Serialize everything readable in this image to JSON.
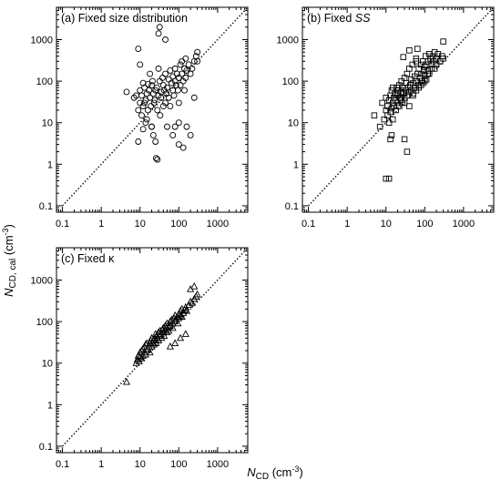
{
  "figure": {
    "y_axis_label": {
      "symbol": "N",
      "subscript": "CD, cal",
      "unit_open": " (cm",
      "unit_exp": "-3",
      "unit_close": ")"
    },
    "x_axis_label": {
      "symbol": "N",
      "subscript": "CD",
      "unit_open": " (cm",
      "unit_exp": "-3",
      "unit_close": ")"
    }
  },
  "chart_data": [
    {
      "type": "scatter",
      "panel": "a",
      "title": "(a) Fixed size distribution",
      "title_parts": [
        {
          "text": "(a) Fixed size distribution",
          "style": "normal"
        }
      ],
      "marker": "circle",
      "xscale": "log",
      "yscale": "log",
      "xlim": [
        0.07,
        6000
      ],
      "ylim": [
        0.07,
        6000
      ],
      "xticks": [
        "0.1",
        "1",
        "10",
        "100",
        "1000"
      ],
      "yticks": [
        "0.1",
        "1",
        "10",
        "100",
        "1000"
      ],
      "reference_line": "1:1",
      "x": [
        4.5,
        7,
        8,
        9,
        9,
        10,
        10,
        11,
        11,
        12,
        12,
        13,
        13,
        14,
        14,
        15,
        15,
        16,
        16,
        17,
        18,
        18,
        19,
        20,
        20,
        21,
        22,
        23,
        24,
        25,
        26,
        27,
        28,
        30,
        30,
        32,
        33,
        35,
        35,
        38,
        40,
        40,
        42,
        45,
        45,
        48,
        50,
        50,
        55,
        55,
        60,
        60,
        65,
        70,
        70,
        75,
        80,
        80,
        85,
        90,
        95,
        100,
        100,
        110,
        110,
        120,
        120,
        130,
        140,
        140,
        150,
        160,
        180,
        200,
        220,
        250,
        280,
        300,
        10,
        12,
        22,
        30,
        45,
        70,
        80,
        100,
        130,
        160,
        200,
        250,
        300,
        9,
        25,
        28,
        32,
        150,
        20,
        100
      ],
      "y": [
        55,
        40,
        45,
        3.5,
        20,
        30,
        60,
        45,
        15,
        25,
        90,
        30,
        70,
        10,
        35,
        50,
        12,
        85,
        20,
        60,
        40,
        150,
        25,
        80,
        8,
        100,
        50,
        30,
        35,
        60,
        1.4,
        70,
        20,
        45,
        200,
        100,
        15,
        55,
        40,
        120,
        25,
        80,
        60,
        30,
        150,
        50,
        70,
        8,
        110,
        40,
        180,
        25,
        90,
        60,
        130,
        45,
        200,
        100,
        80,
        150,
        60,
        30,
        120,
        250,
        80,
        300,
        150,
        100,
        200,
        60,
        120,
        180,
        250,
        150,
        200,
        300,
        400,
        500,
        250,
        7,
        5,
        1400,
        1000,
        5,
        8,
        3,
        2.5,
        8,
        5,
        40,
        300,
        600,
        3.5,
        1.3,
        2000,
        350,
        8,
        10
      ]
    },
    {
      "type": "scatter",
      "panel": "b",
      "title": "(b) Fixed SS",
      "title_parts": [
        {
          "text": "(b) Fixed ",
          "style": "normal"
        },
        {
          "text": "SS",
          "style": "italic"
        }
      ],
      "marker": "square",
      "xscale": "log",
      "yscale": "log",
      "xlim": [
        0.07,
        6000
      ],
      "ylim": [
        0.07,
        6000
      ],
      "xticks": [
        "0.1",
        "1",
        "10",
        "100",
        "1000"
      ],
      "yticks": [
        "0.1",
        "1",
        "10",
        "100",
        "1000"
      ],
      "reference_line": "1:1",
      "x": [
        5,
        7,
        8,
        9,
        10,
        10,
        11,
        11,
        12,
        12,
        13,
        13,
        14,
        14,
        15,
        15,
        16,
        16,
        17,
        18,
        18,
        19,
        20,
        20,
        21,
        22,
        22,
        23,
        24,
        25,
        25,
        26,
        27,
        28,
        30,
        30,
        32,
        33,
        35,
        35,
        37,
        40,
        40,
        42,
        45,
        45,
        48,
        50,
        50,
        55,
        55,
        60,
        60,
        65,
        70,
        70,
        75,
        80,
        80,
        85,
        90,
        95,
        100,
        100,
        105,
        110,
        120,
        120,
        130,
        140,
        150,
        160,
        170,
        180,
        200,
        220,
        250,
        280,
        300,
        12,
        14,
        30,
        35,
        60,
        15,
        20,
        25,
        30,
        40,
        50,
        60,
        70,
        80,
        90,
        100,
        110,
        130,
        150,
        200,
        250,
        300,
        40,
        120,
        180,
        28,
        65,
        10,
        13
      ],
      "y": [
        15,
        8,
        30,
        12,
        20,
        40,
        15,
        25,
        10,
        35,
        18,
        45,
        22,
        60,
        30,
        12,
        40,
        25,
        50,
        35,
        20,
        70,
        45,
        30,
        60,
        25,
        80,
        40,
        35,
        55,
        100,
        30,
        70,
        50,
        40,
        120,
        60,
        90,
        45,
        150,
        70,
        55,
        200,
        80,
        60,
        110,
        250,
        90,
        50,
        130,
        70,
        300,
        100,
        150,
        80,
        200,
        120,
        250,
        150,
        100,
        300,
        180,
        220,
        140,
        400,
        250,
        300,
        180,
        450,
        350,
        250,
        400,
        300,
        500,
        350,
        450,
        300,
        400,
        350,
        0.45,
        5,
        4,
        2,
        350,
        70,
        50,
        40,
        30,
        25,
        45,
        60,
        70,
        80,
        90,
        100,
        110,
        150,
        200,
        250,
        300,
        900,
        550,
        150,
        200,
        380,
        600,
        0.45,
        4
      ]
    },
    {
      "type": "scatter",
      "panel": "c",
      "title": "(c) Fixed κ",
      "title_parts": [
        {
          "text": "(c) Fixed ",
          "style": "normal"
        },
        {
          "text": "κ",
          "style": "normal"
        }
      ],
      "marker": "triangle",
      "xscale": "log",
      "yscale": "log",
      "xlim": [
        0.07,
        6000
      ],
      "ylim": [
        0.07,
        6000
      ],
      "xticks": [
        "0.1",
        "1",
        "10",
        "100",
        "1000"
      ],
      "yticks": [
        "0.1",
        "1",
        "10",
        "100",
        "1000"
      ],
      "reference_line": "1:1",
      "x": [
        4.5,
        8,
        8.5,
        9,
        9.5,
        10,
        10,
        11,
        11,
        12,
        12,
        13,
        13,
        14,
        14,
        15,
        15,
        16,
        17,
        18,
        18,
        19,
        20,
        20,
        21,
        22,
        23,
        24,
        25,
        25,
        26,
        27,
        28,
        30,
        30,
        32,
        33,
        35,
        36,
        38,
        40,
        40,
        42,
        45,
        45,
        48,
        50,
        50,
        55,
        55,
        60,
        60,
        65,
        70,
        70,
        75,
        80,
        80,
        85,
        90,
        95,
        100,
        100,
        110,
        110,
        120,
        120,
        130,
        140,
        150,
        160,
        180,
        200,
        220,
        250,
        280,
        300,
        60,
        80,
        110,
        150,
        200,
        250
      ],
      "y": [
        3.5,
        10,
        12,
        15,
        11,
        14,
        18,
        13,
        20,
        15,
        22,
        18,
        25,
        16,
        28,
        20,
        30,
        22,
        25,
        30,
        18,
        35,
        25,
        40,
        30,
        35,
        28,
        40,
        35,
        50,
        30,
        45,
        40,
        35,
        55,
        45,
        60,
        50,
        40,
        65,
        55,
        70,
        45,
        60,
        80,
        70,
        55,
        90,
        75,
        60,
        100,
        80,
        110,
        90,
        70,
        120,
        100,
        140,
        110,
        130,
        90,
        150,
        120,
        140,
        180,
        130,
        200,
        160,
        190,
        220,
        180,
        250,
        300,
        280,
        350,
        400,
        450,
        25,
        30,
        40,
        50,
        600,
        700
      ]
    }
  ]
}
